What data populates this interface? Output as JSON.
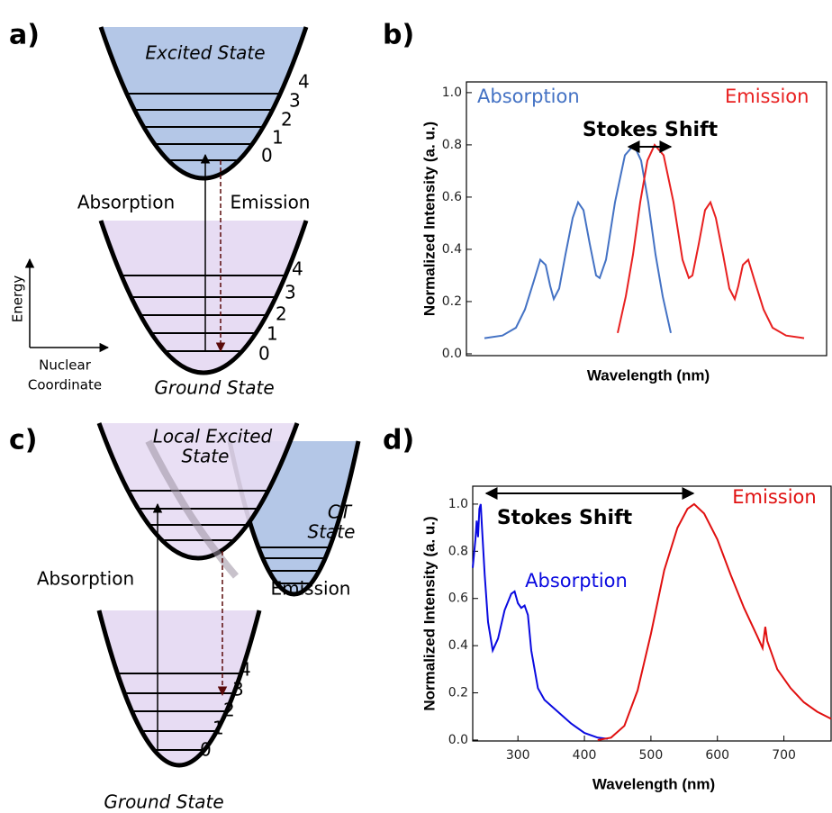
{
  "panels": {
    "a": "a)",
    "b": "b)",
    "c": "c)",
    "d": "d)"
  },
  "diagram_a": {
    "excited_state": "Excited State",
    "excited_levels": [
      "0",
      "1",
      "2",
      "3",
      "4"
    ],
    "absorption": "Absorption",
    "emission": "Emission",
    "ground_levels": [
      "0",
      "1",
      "2",
      "3",
      "4"
    ],
    "ground_state": "Ground State",
    "energy_axis": "Energy",
    "coordinate_axis": [
      "Nuclear",
      "Coordinate"
    ]
  },
  "diagram_c": {
    "local_excited_state": [
      "Local Excited",
      "State"
    ],
    "ct_state": [
      "CT",
      "State"
    ],
    "absorption": "Absorption",
    "emission": "Emission",
    "ground_levels": [
      "0",
      "1",
      "2",
      "3",
      "4"
    ],
    "ground_state": "Ground State"
  },
  "chart_data": [
    {
      "type": "line",
      "xlabel": "Wavelength (nm)",
      "ylabel": "Normalized Intensity (a. u.)",
      "annotation": "Stokes Shift",
      "xlim": [
        0,
        400
      ],
      "ylim": [
        -0.007,
        1.041
      ],
      "yticks": [
        {
          "value": 0,
          "label": "0.0"
        },
        0.2,
        0.4,
        0.6,
        0.8,
        {
          "value": 1,
          "label": "1.0"
        }
      ],
      "series": [
        {
          "name": "Absorption",
          "color": "#4472c4",
          "x": [
            20,
            40,
            55,
            65,
            75,
            82,
            88,
            93,
            97,
            103,
            110,
            118,
            124,
            130,
            137,
            144,
            148,
            155,
            165,
            176,
            186,
            194,
            202,
            210,
            218,
            227
          ],
          "values": [
            0.06,
            0.07,
            0.1,
            0.17,
            0.28,
            0.36,
            0.34,
            0.26,
            0.21,
            0.25,
            0.38,
            0.52,
            0.58,
            0.55,
            0.42,
            0.3,
            0.29,
            0.36,
            0.58,
            0.76,
            0.8,
            0.74,
            0.58,
            0.38,
            0.22,
            0.08
          ]
        },
        {
          "name": "Emission",
          "color": "#e82020",
          "x": [
            168,
            177,
            185,
            193,
            201,
            209,
            219,
            230,
            240,
            247,
            251,
            258,
            265,
            271,
            277,
            285,
            292,
            298,
            302,
            307,
            313,
            320,
            330,
            340,
            355,
            375
          ],
          "values": [
            0.08,
            0.22,
            0.38,
            0.58,
            0.74,
            0.8,
            0.76,
            0.58,
            0.36,
            0.29,
            0.3,
            0.42,
            0.55,
            0.58,
            0.52,
            0.38,
            0.25,
            0.21,
            0.26,
            0.34,
            0.36,
            0.28,
            0.17,
            0.1,
            0.07,
            0.06
          ]
        }
      ]
    },
    {
      "type": "line",
      "xlabel": "Wavelength (nm)",
      "ylabel": "Normalized Intensity (a. u.)",
      "annotation": "Stokes Shift",
      "xlim": [
        232,
        771
      ],
      "ylim": [
        -0.004,
        1.076
      ],
      "xticks": [
        300,
        400,
        500,
        600,
        700
      ],
      "yticks": [
        {
          "value": 0,
          "label": "0.0"
        },
        0.2,
        0.4,
        0.6,
        0.8,
        {
          "value": 1,
          "label": "1.0"
        }
      ],
      "series": [
        {
          "name": "Absorption",
          "color": "#0a0ae0",
          "x": [
            232,
            236,
            238,
            240,
            242,
            244,
            246,
            250,
            255,
            262,
            270,
            280,
            290,
            295,
            300,
            305,
            310,
            315,
            320,
            330,
            340,
            360,
            380,
            400,
            420,
            435
          ],
          "values": [
            0.73,
            0.85,
            0.93,
            0.86,
            0.98,
            1.0,
            0.9,
            0.7,
            0.5,
            0.38,
            0.43,
            0.55,
            0.62,
            0.63,
            0.58,
            0.56,
            0.57,
            0.53,
            0.38,
            0.22,
            0.17,
            0.12,
            0.07,
            0.03,
            0.01,
            0.005
          ]
        },
        {
          "name": "Emission",
          "color": "#e01010",
          "x": [
            420,
            440,
            460,
            480,
            500,
            520,
            540,
            555,
            565,
            580,
            600,
            620,
            640,
            660,
            668,
            672,
            675,
            690,
            710,
            730,
            750,
            771
          ],
          "values": [
            0.0,
            0.01,
            0.06,
            0.21,
            0.45,
            0.72,
            0.9,
            0.98,
            1.0,
            0.96,
            0.85,
            0.7,
            0.56,
            0.44,
            0.39,
            0.48,
            0.42,
            0.3,
            0.22,
            0.16,
            0.12,
            0.09
          ]
        }
      ]
    }
  ]
}
